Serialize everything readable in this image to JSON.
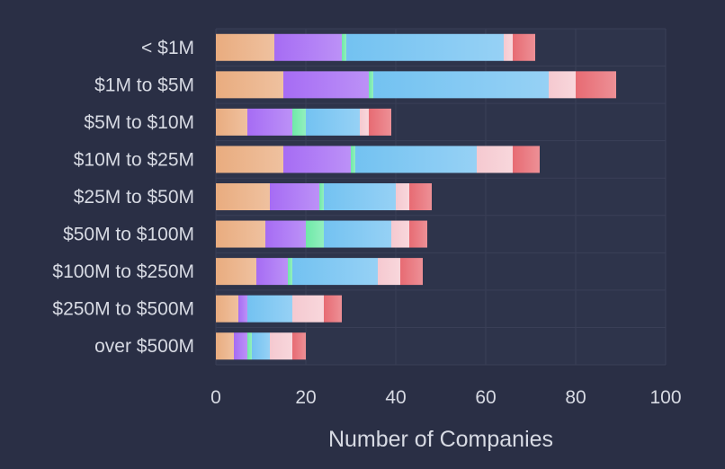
{
  "chart_data": {
    "type": "bar",
    "orientation": "horizontal",
    "stacked": true,
    "title": "",
    "xlabel": "Number of Companies",
    "ylabel": "",
    "xlim": [
      0,
      100
    ],
    "x_ticks": [
      "0",
      "20",
      "40",
      "60",
      "80",
      "100"
    ],
    "grid": true,
    "categories": [
      "< $1M",
      "$1M to $5M",
      "$5M to $10M",
      "$10M to $25M",
      "$25M to $50M",
      "$50M to $100M",
      "$100M to $250M",
      "$250M to $500M",
      "over $500M"
    ],
    "series": [
      {
        "color": "#e9ac7f",
        "values": [
          13,
          15,
          7,
          15,
          12,
          11,
          9,
          5,
          4
        ]
      },
      {
        "color": "#a66cf4",
        "values": [
          15,
          19,
          10,
          15,
          11,
          9,
          7,
          2,
          3
        ]
      },
      {
        "color": "#6fe9a8",
        "values": [
          1,
          1,
          3,
          1,
          1,
          4,
          1,
          0,
          1
        ]
      },
      {
        "color": "#73c2f1",
        "values": [
          35,
          39,
          12,
          27,
          16,
          15,
          19,
          10,
          4
        ]
      },
      {
        "color": "#f5c9d0",
        "values": [
          2,
          6,
          2,
          8,
          3,
          4,
          5,
          7,
          5
        ]
      },
      {
        "color": "#e76b73",
        "values": [
          5,
          9,
          5,
          6,
          5,
          4,
          5,
          4,
          3
        ]
      }
    ]
  }
}
